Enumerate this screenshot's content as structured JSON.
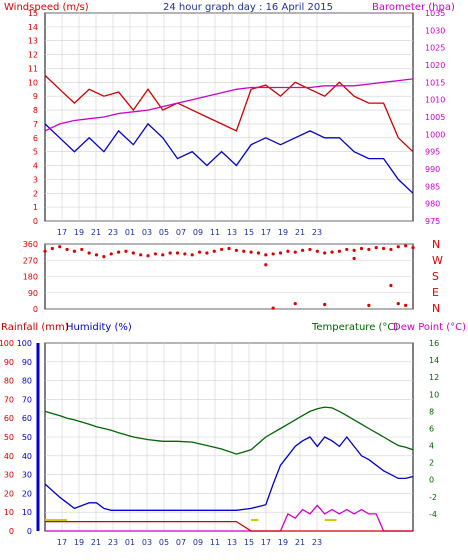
{
  "title": "24 hour graph day : 16 April 2015",
  "colors": {
    "wind": "#dd0000",
    "gust": "#cc0000",
    "baro": "#cc00cc",
    "humidity": "#0000cc",
    "temperature": "#006600",
    "dewpoint": "#cc00cc",
    "rain": "#cc0000",
    "sun": "#cccc00",
    "grid": "#d0d0d0",
    "axis": "#000000"
  },
  "chart_data": [
    {
      "type": "line",
      "name": "wind-barometer",
      "left_axis_label": "Windspeed (m/s)",
      "right_axis_label": "Barometer (hpa)",
      "ylim_left": [
        0,
        15
      ],
      "ylim_right": [
        975,
        1035
      ],
      "left_ticks": [
        "0",
        "1",
        "2",
        "3",
        "4",
        "5",
        "6",
        "7",
        "8",
        "9",
        "10",
        "11",
        "12",
        "13",
        "14",
        "15"
      ],
      "right_ticks": [
        "975",
        "980",
        "985",
        "990",
        "995",
        "1000",
        "1005",
        "1010",
        "1015",
        "1020",
        "1025",
        "1030",
        "1035"
      ],
      "x_ticks": [
        "17",
        "19",
        "21",
        "23",
        "01",
        "03",
        "05",
        "07",
        "09",
        "11",
        "13",
        "15",
        "17",
        "19",
        "21",
        "23"
      ],
      "x": [
        15,
        16,
        17,
        18,
        19,
        20,
        21,
        22,
        23,
        24,
        25,
        26,
        27,
        28,
        29,
        30,
        31,
        32,
        33,
        34,
        35,
        36,
        37,
        38,
        39,
        40
      ],
      "series": [
        {
          "key": "gust",
          "values": [
            10.5,
            9.5,
            8.5,
            9.5,
            9.0,
            9.3,
            8.0,
            9.5,
            8.0,
            8.5,
            8.0,
            7.5,
            7.0,
            6.5,
            9.5,
            9.8,
            9.0,
            10.0,
            9.5,
            9.0,
            10.0,
            9.0,
            8.5,
            8.5,
            6.0,
            5.0
          ]
        },
        {
          "key": "wind",
          "values": [
            7.0,
            6.0,
            5.0,
            6.0,
            5.0,
            6.5,
            5.5,
            7.0,
            6.0,
            4.5,
            5.0,
            4.0,
            5.0,
            4.0,
            5.5,
            6.0,
            5.5,
            6.0,
            6.5,
            6.0,
            6.0,
            5.0,
            4.5,
            4.5,
            3.0,
            2.0
          ]
        },
        {
          "key": "baro",
          "values": [
            1001,
            1003,
            1004,
            1004.5,
            1005,
            1006,
            1006.5,
            1007,
            1008,
            1009,
            1010,
            1011,
            1012,
            1013,
            1013.5,
            1013.5,
            1013.5,
            1013.5,
            1013.5,
            1014,
            1014,
            1014,
            1014.5,
            1015,
            1015.5,
            1016
          ]
        }
      ]
    },
    {
      "type": "scatter",
      "name": "wind-direction",
      "ylim": [
        0,
        360
      ],
      "left_ticks": [
        "0",
        "90",
        "180",
        "270",
        "360"
      ],
      "compass": [
        "N",
        "W",
        "S",
        "E",
        "N"
      ],
      "x": [
        15,
        15.5,
        16,
        16.5,
        17,
        17.5,
        18,
        18.5,
        19,
        19.5,
        20,
        20.5,
        21,
        21.5,
        22,
        22.5,
        23,
        23.5,
        24,
        24.5,
        25,
        25.5,
        26,
        26.5,
        27,
        27.5,
        28,
        28.5,
        29,
        29.5,
        30,
        30.5,
        31,
        31.5,
        32,
        32.5,
        33,
        33.5,
        34,
        34.5,
        35,
        35.5,
        36,
        36.5,
        37,
        37.5,
        38,
        38.5,
        39,
        39.5,
        40
      ],
      "values": [
        320,
        335,
        345,
        330,
        320,
        330,
        310,
        300,
        290,
        305,
        315,
        320,
        310,
        300,
        295,
        305,
        300,
        310,
        310,
        305,
        300,
        315,
        310,
        320,
        330,
        335,
        325,
        320,
        315,
        310,
        300,
        305,
        310,
        320,
        315,
        325,
        330,
        320,
        310,
        315,
        320,
        330,
        325,
        335,
        330,
        340,
        335,
        330,
        345,
        350,
        340
      ],
      "outliers": [
        {
          "x": 30,
          "y": 245
        },
        {
          "x": 30.5,
          "y": 5
        },
        {
          "x": 32,
          "y": 30
        },
        {
          "x": 34,
          "y": 25
        },
        {
          "x": 36,
          "y": 280
        },
        {
          "x": 37,
          "y": 20
        },
        {
          "x": 38.5,
          "y": 130
        },
        {
          "x": 39,
          "y": 30
        },
        {
          "x": 39.5,
          "y": 20
        }
      ]
    },
    {
      "type": "line",
      "name": "rain-humidity-temp",
      "rain_label": "Rainfall (mm)",
      "humidity_label": "Humidity (%)",
      "temp_label": "Temperature (°C)",
      "dew_label": "Dew Point (°C)",
      "ylim_left": [
        0,
        100
      ],
      "ylim_right": [
        -6,
        16
      ],
      "rain_ticks": [
        "0",
        "10",
        "20",
        "30",
        "40",
        "50",
        "60",
        "70",
        "80",
        "90",
        "100"
      ],
      "hum_ticks": [
        "0",
        "10",
        "20",
        "30",
        "40",
        "50",
        "60",
        "70",
        "80",
        "90",
        "100"
      ],
      "temp_ticks": [
        "-4",
        "-2",
        "0",
        "2",
        "4",
        "6",
        "8",
        "10",
        "12",
        "14",
        "16"
      ],
      "x_ticks": [
        "17",
        "19",
        "21",
        "23",
        "01",
        "03",
        "05",
        "07",
        "09",
        "11",
        "13",
        "15",
        "17",
        "19",
        "21",
        "23"
      ],
      "x": [
        15,
        16,
        16.5,
        17,
        18,
        18.5,
        19,
        19.5,
        20,
        21,
        22,
        23,
        24,
        25,
        26,
        27,
        28,
        29,
        30,
        30.5,
        31,
        31.5,
        32,
        32.5,
        33,
        33.5,
        34,
        34.5,
        35,
        35.5,
        36,
        36.5,
        37,
        37.5,
        38,
        38.5,
        39,
        39.5,
        40
      ],
      "series": [
        {
          "key": "temperature",
          "values": [
            8.0,
            7.5,
            7.2,
            7.0,
            6.5,
            6.2,
            6.0,
            5.8,
            5.5,
            5.0,
            4.7,
            4.5,
            4.5,
            4.4,
            4.0,
            3.6,
            3.0,
            3.5,
            5.0,
            5.5,
            6.0,
            6.5,
            7.0,
            7.5,
            8.0,
            8.3,
            8.5,
            8.4,
            8.0,
            7.5,
            7.0,
            6.5,
            6.0,
            5.5,
            5.0,
            4.5,
            4.0,
            3.8,
            3.5
          ]
        },
        {
          "key": "humidity",
          "values": [
            25,
            18,
            15,
            12,
            15,
            15,
            12,
            11,
            11,
            11,
            11,
            11,
            11,
            11,
            11,
            11,
            11,
            12,
            14,
            25,
            35,
            40,
            45,
            48,
            50,
            45,
            50,
            48,
            45,
            50,
            45,
            40,
            38,
            35,
            32,
            30,
            28,
            28,
            29
          ]
        },
        {
          "key": "dewpoint",
          "values": [
            -6,
            -6,
            -6,
            -6,
            -6,
            -6,
            -6,
            -6,
            -6,
            -6,
            -6,
            -6,
            -6,
            -6,
            -6,
            -6,
            -6,
            -6,
            -6,
            -6,
            -6,
            -4,
            -4.5,
            -3.5,
            -4,
            -3,
            -4,
            -3.5,
            -4,
            -3.5,
            -4,
            -3.5,
            -4,
            -4,
            -6,
            -6,
            -6,
            -6,
            -6
          ]
        },
        {
          "key": "rain",
          "values": [
            5,
            5,
            5,
            5,
            5,
            5,
            5,
            5,
            5,
            5,
            5,
            5,
            5,
            5,
            5,
            5,
            5,
            0,
            0,
            0,
            0,
            0,
            0,
            0,
            0,
            0,
            0,
            0,
            0,
            0,
            0,
            0,
            0,
            0,
            0,
            0,
            0,
            0,
            0
          ]
        }
      ],
      "sun_segments": [
        [
          15,
          16.5
        ],
        [
          29,
          29.5
        ],
        [
          34,
          34.8
        ]
      ]
    }
  ]
}
